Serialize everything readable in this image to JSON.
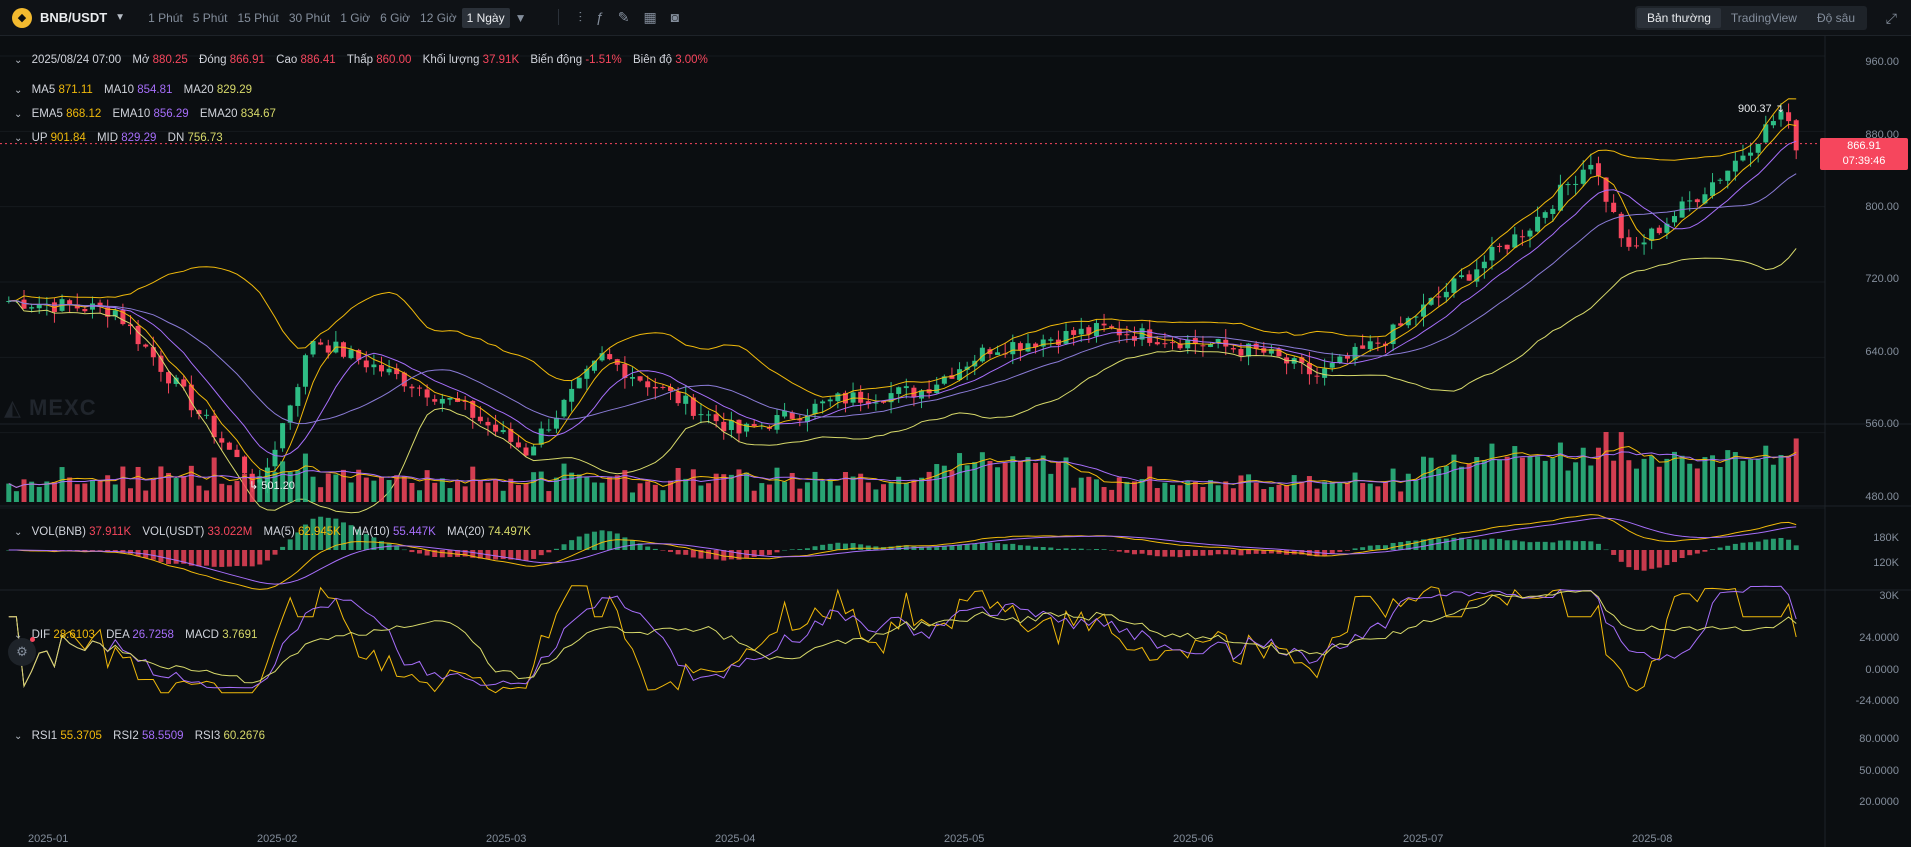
{
  "toolbar": {
    "symbol": "BNB/USDT",
    "intervals": [
      "1 Phút",
      "5 Phút",
      "15 Phút",
      "30 Phút",
      "1 Giờ",
      "6 Giờ",
      "12 Giờ",
      "1 Ngày"
    ],
    "active_interval": "1 Ngày",
    "views": [
      "Bản thường",
      "TradingView",
      "Độ sâu"
    ],
    "active_view": "Bản thường",
    "icons": [
      "indicator-icon",
      "fx-icon",
      "pencil-icon",
      "layout-icon",
      "camera-icon",
      "fullscreen-icon"
    ]
  },
  "ohlc": {
    "date": "2025/08/24 07:00",
    "open_label": "Mở",
    "open": "880.25",
    "close_label": "Đóng",
    "close": "866.91",
    "high_label": "Cao",
    "high": "886.41",
    "low_label": "Thấp",
    "low": "860.00",
    "volume_label": "Khối lượng",
    "volume": "37.91K",
    "change_label": "Biến động",
    "change": "-1.51%",
    "amplitude_label": "Biên độ",
    "amplitude": "3.00%"
  },
  "ma": {
    "ma5_label": "MA5",
    "ma5": "871.11",
    "ma10_label": "MA10",
    "ma10": "854.81",
    "ma20_label": "MA20",
    "ma20": "829.29"
  },
  "ema": {
    "ema5_label": "EMA5",
    "ema5": "868.12",
    "ema10_label": "EMA10",
    "ema10": "856.29",
    "ema20_label": "EMA20",
    "ema20": "834.67"
  },
  "boll": {
    "up_label": "UP",
    "up": "901.84",
    "mid_label": "MID",
    "mid": "829.29",
    "dn_label": "DN",
    "dn": "756.73"
  },
  "volume_pane": {
    "vol_label": "VOL(BNB)",
    "vol": "37.911K",
    "volu_label": "VOL(USDT)",
    "volu": "33.022M",
    "ma5_label": "MA(5)",
    "ma5": "62.945K",
    "ma10_label": "MA(10)",
    "ma10": "55.447K",
    "ma20_label": "MA(20)",
    "ma20": "74.497K"
  },
  "macd_pane": {
    "dif_label": "DIF",
    "dif": "28.6103",
    "dea_label": "DEA",
    "dea": "26.7258",
    "macd_label": "MACD",
    "macd": "3.7691"
  },
  "rsi_pane": {
    "rsi1_label": "RSI1",
    "rsi1": "55.3705",
    "rsi2_label": "RSI2",
    "rsi2": "58.5509",
    "rsi3_label": "RSI3",
    "rsi3": "60.2676"
  },
  "price_axis": [
    "960.00",
    "880.00",
    "800.00",
    "720.00",
    "640.00",
    "560.00",
    "480.00"
  ],
  "volume_axis": [
    "180K",
    "120K",
    "30K"
  ],
  "macd_axis": [
    "24.0000",
    "0.0000",
    "-24.0000"
  ],
  "rsi_axis": [
    "80.0000",
    "50.0000",
    "20.0000"
  ],
  "time_axis": [
    "2025-01",
    "2025-02",
    "2025-03",
    "2025-04",
    "2025-05",
    "2025-06",
    "2025-07",
    "2025-08"
  ],
  "last_price": {
    "price": "866.91",
    "countdown": "07:39:46"
  },
  "marks": {
    "high": "900.37",
    "low": "501.20"
  },
  "watermark": "MEXC",
  "colors": {
    "up": "#2ebd85",
    "down": "#f6465d",
    "ma5": "#f0b90b",
    "ma10": "#a66efa",
    "ma20": "#d7d96a"
  },
  "chart_data": {
    "type": "candlestick",
    "series_summary": "BNB/USDT daily candles, Jan 2025 to Aug 2025",
    "anchors": [
      {
        "x": "2025-01-01",
        "price": 700
      },
      {
        "x": "2025-01-15",
        "price": 690
      },
      {
        "x": "2025-02-03",
        "price": 501.2
      },
      {
        "x": "2025-02-10",
        "price": 660
      },
      {
        "x": "2025-03-01",
        "price": 590
      },
      {
        "x": "2025-03-10",
        "price": 540
      },
      {
        "x": "2025-03-20",
        "price": 640
      },
      {
        "x": "2025-04-07",
        "price": 560
      },
      {
        "x": "2025-04-20",
        "price": 595
      },
      {
        "x": "2025-05-01",
        "price": 605
      },
      {
        "x": "2025-05-10",
        "price": 650
      },
      {
        "x": "2025-05-25",
        "price": 670
      },
      {
        "x": "2025-06-15",
        "price": 645
      },
      {
        "x": "2025-06-22",
        "price": 620
      },
      {
        "x": "2025-07-01",
        "price": 660
      },
      {
        "x": "2025-07-20",
        "price": 780
      },
      {
        "x": "2025-07-28",
        "price": 850
      },
      {
        "x": "2025-08-02",
        "price": 750
      },
      {
        "x": "2025-08-15",
        "price": 840
      },
      {
        "x": "2025-08-22",
        "price": 900.37
      },
      {
        "x": "2025-08-24",
        "price": 866.91
      }
    ],
    "ylim": [
      480,
      960
    ]
  }
}
